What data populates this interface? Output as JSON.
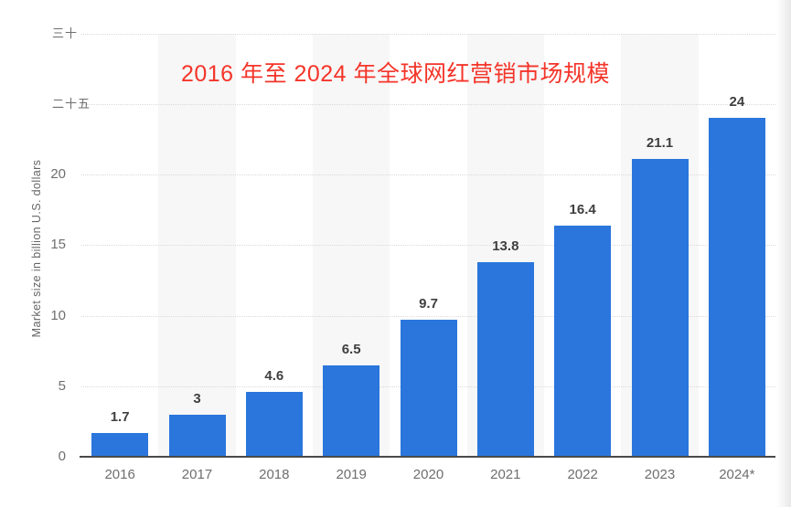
{
  "chart_data": {
    "type": "bar",
    "title": "2016 年至 2024 年全球网红营销市场规模",
    "title_color": "#f4352a",
    "ylabel": "Market size in billion U.S. dollars",
    "categories": [
      "2016",
      "2017",
      "2018",
      "2019",
      "2020",
      "2021",
      "2022",
      "2023",
      "2024*"
    ],
    "values": [
      1.7,
      3,
      4.6,
      6.5,
      9.7,
      13.8,
      16.4,
      21.1,
      24
    ],
    "value_labels": [
      "1.7",
      "3",
      "4.6",
      "6.5",
      "9.7",
      "13.8",
      "16.4",
      "21.1",
      "24"
    ],
    "bar_color": "#2a76dc",
    "value_label_color": "#3f3f3f",
    "tick_label_color": "#6e6e6e",
    "ylim": [
      0,
      30
    ],
    "yticks": [
      {
        "value": 0,
        "label": "0"
      },
      {
        "value": 5,
        "label": "5"
      },
      {
        "value": 10,
        "label": "10"
      },
      {
        "value": 15,
        "label": "15"
      },
      {
        "value": 20,
        "label": "20"
      },
      {
        "value": 25,
        "label": "二十五"
      },
      {
        "value": 30,
        "label": "三十"
      }
    ],
    "grid": "horizontal dotted lines at each y tick",
    "legend": "none",
    "plot_bands": "light gray vertical bands behind alternating columns (2017, 2019, 2021, 2023)"
  }
}
